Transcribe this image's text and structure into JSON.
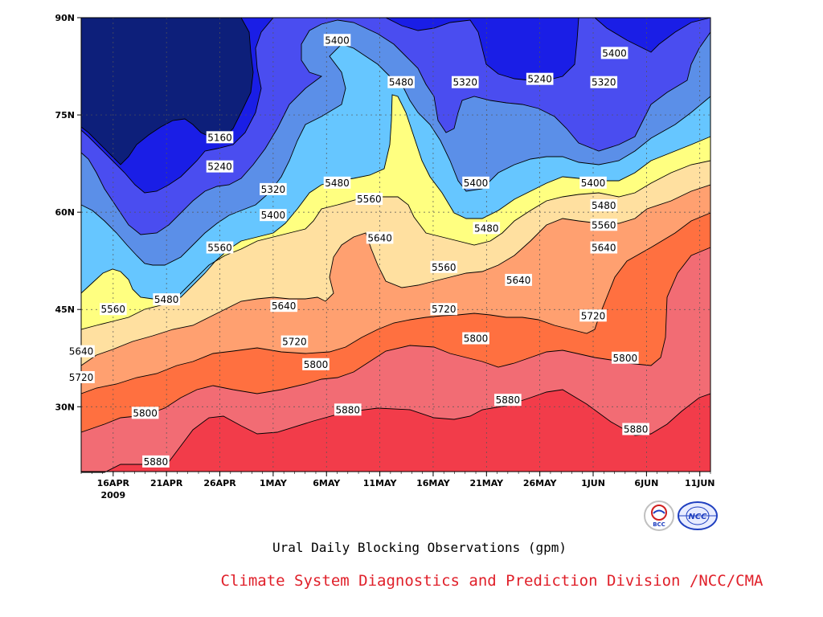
{
  "chart_data": {
    "type": "heatmap",
    "subtype": "filled-contour",
    "title": "Ural Daily Blocking Observations (gpm)",
    "credit": "Climate System Diagnostics and Prediction Division /NCC/CMA",
    "x_labels": [
      "16APR",
      "21APR",
      "26APR",
      "1MAY",
      "6MAY",
      "11MAY",
      "16MAY",
      "21MAY",
      "26MAY",
      "1JUN",
      "6JUN",
      "11JUN"
    ],
    "x_year_label": "2009",
    "x_range": [
      "2009-04-13",
      "2009-06-11"
    ],
    "y_labels": [
      "90N",
      "75N",
      "60N",
      "45N",
      "30N"
    ],
    "y_range": [
      20,
      90
    ],
    "grid": true,
    "contour_levels": [
      5160,
      5240,
      5320,
      5400,
      5480,
      5560,
      5640,
      5720,
      5800,
      5880
    ],
    "fill_colors": [
      "#0d1f7a",
      "#1a1ee6",
      "#4a4df0",
      "#5b8fe8",
      "#66c6ff",
      "#ffff80",
      "#ffe0a0",
      "#ffa070",
      "#ff7040",
      "#f26c74",
      "#f23c4a"
    ],
    "contour_labels": [
      {
        "value": "5400",
        "date": "2009-05-07",
        "lat": 86.5
      },
      {
        "value": "5480",
        "date": "2009-05-13",
        "lat": 80
      },
      {
        "value": "5320",
        "date": "2009-05-19",
        "lat": 80
      },
      {
        "value": "5240",
        "date": "2009-05-26",
        "lat": 80.5
      },
      {
        "value": "5320",
        "date": "2009-06-01",
        "lat": 80
      },
      {
        "value": "5400",
        "date": "2009-06-02",
        "lat": 84.5
      },
      {
        "value": "5160",
        "date": "2009-04-26",
        "lat": 71.5
      },
      {
        "value": "5240",
        "date": "2009-04-26",
        "lat": 67
      },
      {
        "value": "5320",
        "date": "2009-05-01",
        "lat": 63.5
      },
      {
        "value": "5480",
        "date": "2009-05-07",
        "lat": 64.5
      },
      {
        "value": "5400",
        "date": "2009-05-20",
        "lat": 64.5
      },
      {
        "value": "5400",
        "date": "2009-05-31",
        "lat": 64.5
      },
      {
        "value": "5480",
        "date": "2009-06-01",
        "lat": 61
      },
      {
        "value": "5560",
        "date": "2009-05-10",
        "lat": 62
      },
      {
        "value": "5400",
        "date": "2009-05-01",
        "lat": 59.5
      },
      {
        "value": "5480",
        "date": "2009-05-21",
        "lat": 57.5
      },
      {
        "value": "5560",
        "date": "2009-06-01",
        "lat": 58
      },
      {
        "value": "5560",
        "date": "2009-04-26",
        "lat": 54.5
      },
      {
        "value": "5640",
        "date": "2009-05-11",
        "lat": 56
      },
      {
        "value": "5640",
        "date": "2009-06-01",
        "lat": 54.5
      },
      {
        "value": "5560",
        "date": "2009-05-17",
        "lat": 51.5
      },
      {
        "value": "5640",
        "date": "2009-05-24",
        "lat": 49.5
      },
      {
        "value": "5480",
        "date": "2009-04-21",
        "lat": 46.5
      },
      {
        "value": "5560",
        "date": "2009-04-16",
        "lat": 45
      },
      {
        "value": "5640",
        "date": "2009-05-02",
        "lat": 45.5
      },
      {
        "value": "5720",
        "date": "2009-05-17",
        "lat": 45
      },
      {
        "value": "5720",
        "date": "2009-05-31",
        "lat": 44
      },
      {
        "value": "5720",
        "date": "2009-05-03",
        "lat": 40
      },
      {
        "value": "5800",
        "date": "2009-05-20",
        "lat": 40.5
      },
      {
        "value": "5640",
        "date": "2009-04-13",
        "lat": 38.5
      },
      {
        "value": "5800",
        "date": "2009-05-05",
        "lat": 36.5
      },
      {
        "value": "5800",
        "date": "2009-06-03",
        "lat": 37.5
      },
      {
        "value": "5720",
        "date": "2009-04-13",
        "lat": 34.5
      },
      {
        "value": "5800",
        "date": "2009-04-19",
        "lat": 29
      },
      {
        "value": "5880",
        "date": "2009-05-08",
        "lat": 29.5
      },
      {
        "value": "5880",
        "date": "2009-05-23",
        "lat": 31
      },
      {
        "value": "5880",
        "date": "2009-06-04",
        "lat": 26.5
      },
      {
        "value": "5880",
        "date": "2009-04-20",
        "lat": 21.5
      }
    ]
  },
  "logos": [
    {
      "name": "BCC",
      "icon": "bcc-logo"
    },
    {
      "name": "NCC",
      "icon": "ncc-logo"
    }
  ]
}
